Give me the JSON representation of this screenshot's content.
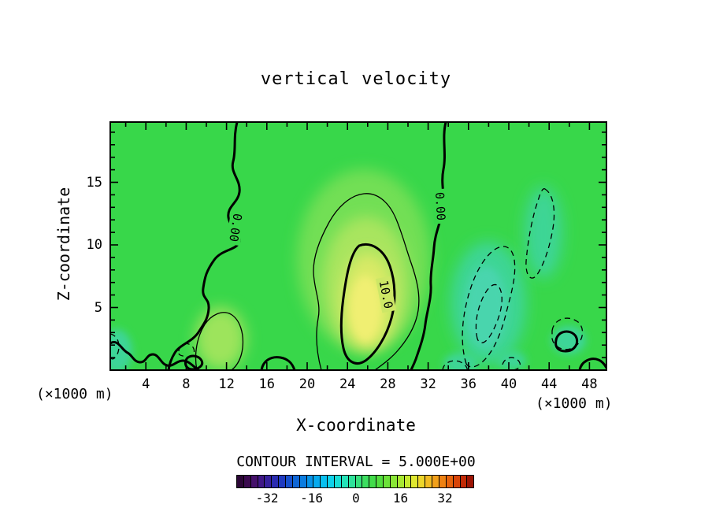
{
  "chart_data": {
    "type": "contour",
    "title": "vertical velocity",
    "xlabel": "X-coordinate",
    "ylabel": "Z-coordinate",
    "x_units_label": "(×1000 m)",
    "y_units_label": "(×1000 m)",
    "xlim": [
      0,
      50
    ],
    "ylim": [
      0,
      20
    ],
    "x_ticks": [
      4,
      8,
      12,
      16,
      20,
      24,
      28,
      32,
      36,
      40,
      44,
      48
    ],
    "y_ticks": [
      5,
      10,
      15
    ],
    "grid": false,
    "contour_interval": 5.0,
    "contour_interval_label": "CONTOUR INTERVAL = 5.000E+00",
    "contour_levels_visible": [
      -5,
      0,
      5,
      10
    ],
    "line_styles": {
      "negative": "thin-dashed",
      "zero": "thick-solid",
      "positive": "thin-solid",
      "multiples-of-10": "thick-solid"
    },
    "contour_labels": [
      {
        "text": "0.00",
        "x": 13,
        "z": 11.5
      },
      {
        "text": "0.00",
        "x": 33,
        "z": 13
      },
      {
        "text": "10.0",
        "x": 27.5,
        "z": 6
      }
    ],
    "field_estimate": {
      "note": "approximate vertical velocity values read from shading/contours",
      "x": [
        2,
        6,
        10,
        14,
        18,
        22,
        26,
        30,
        34,
        38,
        42,
        46
      ],
      "z": [
        2,
        6,
        10,
        14,
        18
      ],
      "values": [
        [
          -2,
          1,
          6,
          2,
          2,
          6,
          10,
          4,
          -2,
          -5,
          -3,
          1
        ],
        [
          -2,
          -1,
          3,
          2,
          3,
          8,
          12,
          6,
          -1,
          -5,
          -4,
          -2
        ],
        [
          -1,
          -2,
          0,
          2,
          3,
          7,
          10,
          5,
          -1,
          -3,
          -4,
          -2
        ],
        [
          -1,
          -2,
          -1,
          1,
          3,
          5,
          6,
          4,
          -1,
          -2,
          -3,
          -2
        ],
        [
          -1,
          -1,
          -1,
          1,
          2,
          3,
          3,
          2,
          -1,
          -1,
          -2,
          -1
        ]
      ],
      "max": {
        "value": 12,
        "x": 26,
        "z": 6
      },
      "min": {
        "value": -6,
        "x": 39,
        "z": 6
      }
    },
    "fill_colors": {
      "background_green": "#38d74a",
      "positive_mid": "#a9e55e",
      "positive_core_yellow": "#f0ef72",
      "negative_teal": "#3ed595",
      "negative_core": "#49d5ad"
    },
    "colorbar": {
      "ticks": [
        -32,
        -16,
        0,
        16,
        32
      ],
      "tick_labels": [
        "-32",
        "-16",
        "0",
        "16",
        "32"
      ],
      "colors": [
        "#2b0636",
        "#3a0a4e",
        "#45106b",
        "#401787",
        "#36209c",
        "#2a2bb0",
        "#1f3ac0",
        "#1650cc",
        "#0e66d6",
        "#0a7ce0",
        "#0793e8",
        "#06aaee",
        "#08c0f0",
        "#0ed2ea",
        "#18ded6",
        "#24e2b8",
        "#2ee29a",
        "#36e07c",
        "#3cde60",
        "#42dc4a",
        "#52de3e",
        "#6ce23a",
        "#8ae636",
        "#a8e832",
        "#c6ea30",
        "#e0e830",
        "#eed62a",
        "#f2bc22",
        "#f2a01a",
        "#ee8112",
        "#e6620c",
        "#d84408",
        "#c22a06",
        "#9c1404"
      ]
    }
  }
}
